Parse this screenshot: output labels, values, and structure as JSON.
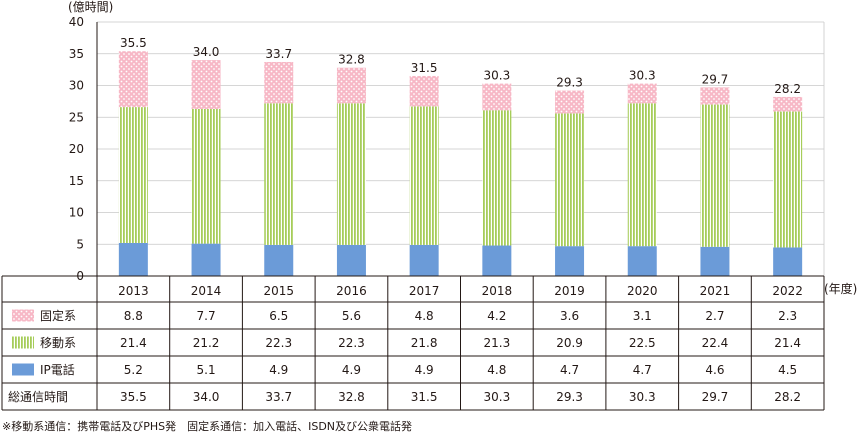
{
  "chart_data": {
    "type": "bar",
    "stacked": true,
    "categories": [
      "2013",
      "2014",
      "2015",
      "2016",
      "2017",
      "2018",
      "2019",
      "2020",
      "2021",
      "2022"
    ],
    "series": [
      {
        "name": "IP電話",
        "values": [
          5.2,
          5.1,
          4.9,
          4.9,
          4.9,
          4.8,
          4.7,
          4.7,
          4.6,
          4.5
        ],
        "color": "#6b9bd8",
        "pattern": "solid"
      },
      {
        "name": "移動系",
        "values": [
          21.4,
          21.2,
          22.3,
          22.3,
          21.8,
          21.3,
          20.9,
          22.5,
          22.4,
          21.4
        ],
        "color": "#a6cd5a",
        "pattern": "vertical-stripes"
      },
      {
        "name": "固定系",
        "values": [
          8.8,
          7.7,
          6.5,
          5.6,
          4.8,
          4.2,
          3.6,
          3.1,
          2.7,
          2.3
        ],
        "color": "#f7b8c6",
        "pattern": "dots"
      }
    ],
    "totals": {
      "label": "総通信時間",
      "values": [
        35.5,
        34.0,
        33.7,
        32.8,
        31.5,
        30.3,
        29.3,
        30.3,
        29.7,
        28.2
      ]
    },
    "ylabel": "(億時間)",
    "xlabel": "(年度)",
    "ylim": [
      0,
      40
    ],
    "yticks": [
      0,
      5,
      10,
      15,
      20,
      25,
      30,
      35,
      40
    ],
    "grid": true,
    "legend": "table-rows-below",
    "table_row_order": [
      "固定系",
      "移動系",
      "IP電話",
      "総通信時間"
    ]
  },
  "footnote": "※移動系通信：携帯電話及びPHS発　固定系通信：加入電話、ISDN及び公衆電話発"
}
